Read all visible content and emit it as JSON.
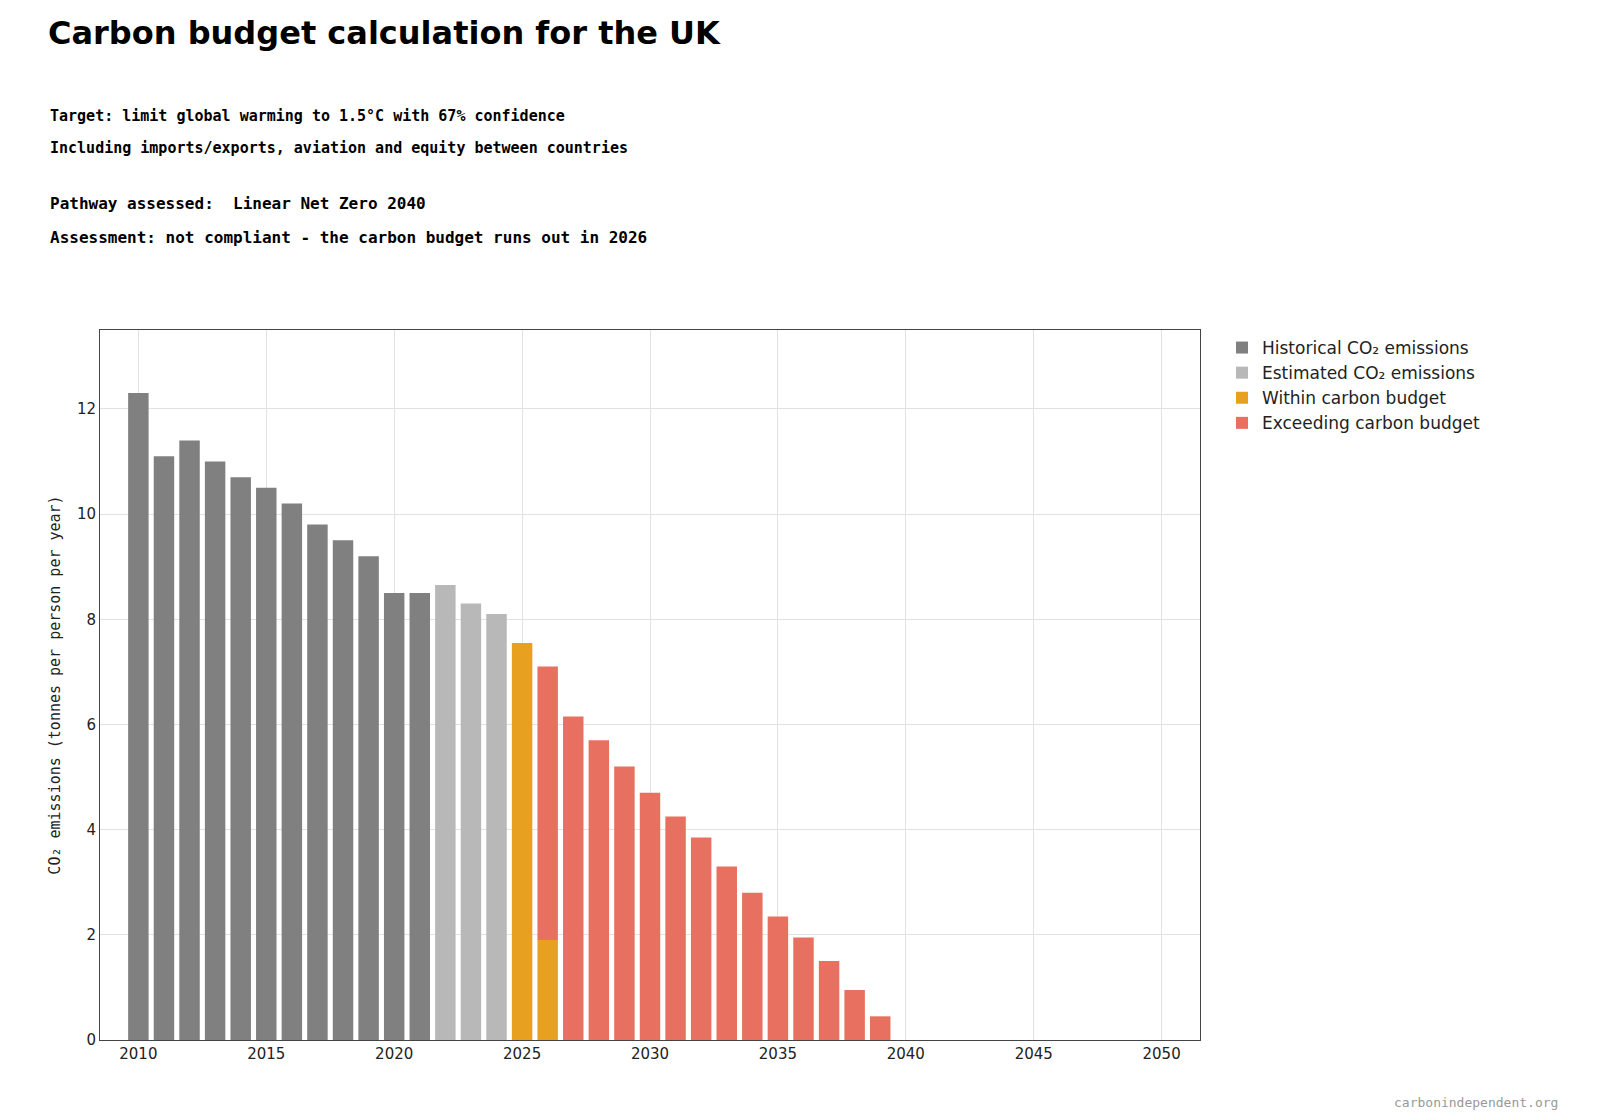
{
  "chart_data": {
    "type": "bar",
    "title": "Carbon budget calculation for the UK",
    "subtitle": [
      "Target: limit global warming to 1.5°C with 67% confidence",
      "Including imports/exports, aviation and equity between countries"
    ],
    "annotations": [
      "Pathway assessed:  Linear Net Zero 2040",
      "Assessment: not compliant - the carbon budget runs out in 2026",
      "carbonindependent.org"
    ],
    "y_label": "CO₂ emissions (tonnes per person per year)",
    "series": [
      {
        "name": "Historical CO₂ emissions",
        "color": "#808080",
        "x": [
          2010,
          2011,
          2012,
          2013,
          2014,
          2015,
          2016,
          2017,
          2018,
          2019,
          2020,
          2021
        ],
        "values": [
          12.3,
          11.1,
          11.4,
          11.0,
          10.7,
          10.5,
          10.2,
          9.8,
          9.5,
          9.2,
          8.5,
          8.5
        ]
      },
      {
        "name": "Estimated CO₂ emissions",
        "color": "#b8b8b8",
        "x": [
          2022,
          2023,
          2024
        ],
        "values": [
          8.65,
          8.3,
          8.1
        ]
      },
      {
        "name": "Within carbon budget",
        "color": "#e8a020",
        "x": [
          2025,
          2026
        ],
        "values": [
          7.55,
          1.9
        ]
      },
      {
        "name": "Exceeding carbon budget",
        "color": "#e87060",
        "x": [
          2025,
          2026,
          2027,
          2028,
          2029,
          2030,
          2031,
          2032,
          2033,
          2034,
          2035,
          2036,
          2037,
          2038,
          2039
        ],
        "values": [
          0.0,
          5.2,
          6.15,
          5.7,
          5.2,
          4.7,
          4.25,
          3.85,
          3.3,
          2.8,
          2.35,
          1.95,
          1.5,
          0.95,
          0.45
        ]
      }
    ],
    "stacked": true,
    "xlim": [
      2008.5,
      2051.5
    ],
    "xticks": [
      2010,
      2015,
      2020,
      2025,
      2030,
      2035,
      2040,
      2045,
      2050
    ],
    "ylim": [
      0,
      13.5
    ],
    "yticks": [
      0,
      2,
      4,
      6,
      8,
      10,
      12
    ],
    "grid": true,
    "legend": "right"
  }
}
